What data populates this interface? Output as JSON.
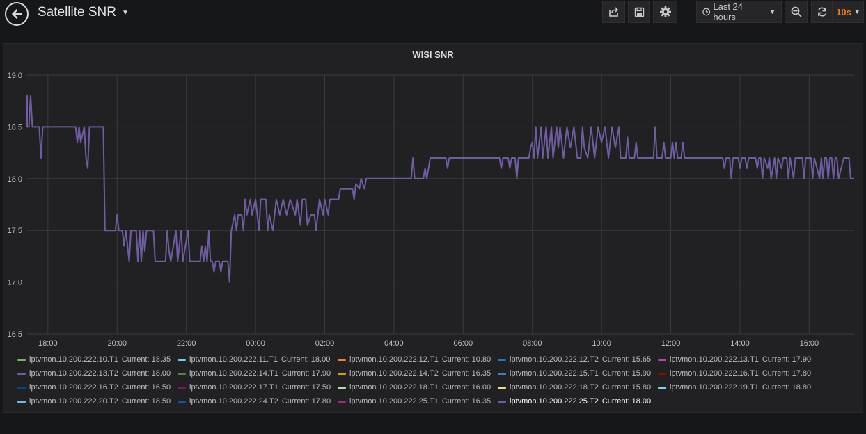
{
  "header": {
    "title": "Satellite SNR",
    "time_range": "Last 24 hours",
    "refresh_interval": "10s"
  },
  "panel": {
    "title": "WISI SNR"
  },
  "legend": [
    {
      "name": "iptvmon.10.200.222.10.T1",
      "current": "Current: 18.35",
      "color": "#7eb26d"
    },
    {
      "name": "iptvmon.10.200.222.11.T1",
      "current": "Current: 18.00",
      "color": "#6ed0e0"
    },
    {
      "name": "iptvmon.10.200.222.12.T1",
      "current": "Current: 10.80",
      "color": "#ef843c"
    },
    {
      "name": "iptvmon.10.200.222.12.T2",
      "current": "Current: 15.65",
      "color": "#1f78c1"
    },
    {
      "name": "iptvmon.10.200.222.13.T1",
      "current": "Current: 17.90",
      "color": "#ba43a9"
    },
    {
      "name": "iptvmon.10.200.222.13.T2",
      "current": "Current: 18.00",
      "color": "#705da0"
    },
    {
      "name": "iptvmon.10.200.222.14.T1",
      "current": "Current: 17.90",
      "color": "#508642"
    },
    {
      "name": "iptvmon.10.200.222.14.T2",
      "current": "Current: 16.35",
      "color": "#cca300"
    },
    {
      "name": "iptvmon.10.200.222.15.T1",
      "current": "Current: 15.90",
      "color": "#447ebc"
    },
    {
      "name": "iptvmon.10.200.222.16.T1",
      "current": "Current: 17.80",
      "color": "#890f02"
    },
    {
      "name": "iptvmon.10.200.222.16.T2",
      "current": "Current: 16.50",
      "color": "#0a437c"
    },
    {
      "name": "iptvmon.10.200.222.17.T1",
      "current": "Current: 17.50",
      "color": "#6d1f62"
    },
    {
      "name": "iptvmon.10.200.222.18.T1",
      "current": "Current: 16.00",
      "color": "#b7dbab"
    },
    {
      "name": "iptvmon.10.200.222.18.T2",
      "current": "Current: 15.80",
      "color": "#f4d598"
    },
    {
      "name": "iptvmon.10.200.222.19.T1",
      "current": "Current: 18.80",
      "color": "#70dbed"
    },
    {
      "name": "iptvmon.10.200.222.20.T2",
      "current": "Current: 18.50",
      "color": "#82b5d8"
    },
    {
      "name": "iptvmon.10.200.222.24.T2",
      "current": "Current: 17.80",
      "color": "#1f4e9b"
    },
    {
      "name": "iptvmon.10.200.222.25.T1",
      "current": "Current: 16.35",
      "color": "#9e2a7a"
    },
    {
      "name": "iptvmon.10.200.222.25.T2",
      "current": "Current: 18.00",
      "color": "#705da0",
      "active": true
    }
  ],
  "chart_data": {
    "type": "line",
    "title": "WISI SNR",
    "ylim": [
      16.5,
      19.0
    ],
    "yticks": [
      "16.5",
      "17.0",
      "17.5",
      "18.0",
      "18.5",
      "19.0"
    ],
    "xlim": [
      -6.6,
      17.3
    ],
    "xticks": [
      {
        "label": "18:00",
        "value": -6
      },
      {
        "label": "20:00",
        "value": -4
      },
      {
        "label": "22:00",
        "value": -2
      },
      {
        "label": "00:00",
        "value": 0
      },
      {
        "label": "02:00",
        "value": 2
      },
      {
        "label": "04:00",
        "value": 4
      },
      {
        "label": "06:00",
        "value": 6
      },
      {
        "label": "08:00",
        "value": 8
      },
      {
        "label": "10:00",
        "value": 10
      },
      {
        "label": "12:00",
        "value": 12
      },
      {
        "label": "14:00",
        "value": 14
      },
      {
        "label": "16:00",
        "value": 16
      }
    ],
    "grid": true,
    "series": [
      {
        "color": "#705da0",
        "points": [
          [
            -7.3,
            18.8
          ],
          [
            -7.0,
            18.8
          ],
          [
            -6.95,
            18.65
          ],
          [
            -6.88,
            18.8
          ],
          [
            -6.82,
            18.65
          ],
          [
            -6.78,
            18.8
          ],
          [
            -6.7,
            18.8
          ],
          [
            -6.65,
            18.5
          ],
          [
            -6.55,
            18.5
          ],
          [
            -6.5,
            18.8
          ],
          [
            -6.45,
            18.5
          ],
          [
            -6.25,
            18.5
          ],
          [
            -6.2,
            18.2
          ],
          [
            -6.15,
            18.5
          ],
          [
            -5.2,
            18.5
          ],
          [
            -5.15,
            18.35
          ],
          [
            -5.1,
            18.5
          ],
          [
            -5.05,
            18.35
          ],
          [
            -4.95,
            18.5
          ],
          [
            -4.9,
            18.2
          ],
          [
            -4.85,
            18.1
          ],
          [
            -4.8,
            18.5
          ],
          [
            -4.4,
            18.5
          ],
          [
            -4.35,
            17.5
          ],
          [
            -4.05,
            17.5
          ],
          [
            -4.0,
            17.65
          ],
          [
            -3.95,
            17.5
          ],
          [
            -3.85,
            17.5
          ],
          [
            -3.8,
            17.35
          ],
          [
            -3.75,
            17.5
          ],
          [
            -3.65,
            17.2
          ],
          [
            -3.6,
            17.5
          ],
          [
            -3.45,
            17.5
          ],
          [
            -3.4,
            17.2
          ],
          [
            -3.35,
            17.5
          ],
          [
            -3.3,
            17.2
          ],
          [
            -3.25,
            17.5
          ],
          [
            -3.2,
            17.3
          ],
          [
            -3.15,
            17.5
          ],
          [
            -2.95,
            17.5
          ],
          [
            -2.9,
            17.2
          ],
          [
            -2.6,
            17.2
          ],
          [
            -2.55,
            17.5
          ],
          [
            -2.5,
            17.3
          ],
          [
            -2.45,
            17.2
          ],
          [
            -2.3,
            17.5
          ],
          [
            -2.25,
            17.2
          ],
          [
            -2.15,
            17.5
          ],
          [
            -2.1,
            17.2
          ],
          [
            -1.95,
            17.5
          ],
          [
            -1.9,
            17.2
          ],
          [
            -1.6,
            17.2
          ],
          [
            -1.55,
            17.35
          ],
          [
            -1.5,
            17.2
          ],
          [
            -1.45,
            17.35
          ],
          [
            -1.4,
            17.2
          ],
          [
            -1.35,
            17.5
          ],
          [
            -1.3,
            17.2
          ],
          [
            -1.25,
            17.2
          ],
          [
            -1.2,
            17.1
          ],
          [
            -1.15,
            17.2
          ],
          [
            -1.05,
            17.2
          ],
          [
            -1.0,
            17.1
          ],
          [
            -0.95,
            17.2
          ],
          [
            -0.8,
            17.2
          ],
          [
            -0.75,
            17.0
          ],
          [
            -0.7,
            17.5
          ],
          [
            -0.6,
            17.65
          ],
          [
            -0.55,
            17.5
          ],
          [
            -0.5,
            17.65
          ],
          [
            -0.4,
            17.65
          ],
          [
            -0.35,
            17.5
          ],
          [
            -0.3,
            17.8
          ],
          [
            -0.25,
            17.65
          ],
          [
            -0.15,
            17.8
          ],
          [
            -0.1,
            17.65
          ],
          [
            0.0,
            17.8
          ],
          [
            0.1,
            17.5
          ],
          [
            0.15,
            17.8
          ],
          [
            0.3,
            17.8
          ],
          [
            0.35,
            17.5
          ],
          [
            0.4,
            17.65
          ],
          [
            0.5,
            17.5
          ],
          [
            0.6,
            17.8
          ],
          [
            0.7,
            17.65
          ],
          [
            0.8,
            17.8
          ],
          [
            0.9,
            17.65
          ],
          [
            1.0,
            17.8
          ],
          [
            1.15,
            17.65
          ],
          [
            1.2,
            17.8
          ],
          [
            1.3,
            17.55
          ],
          [
            1.35,
            17.8
          ],
          [
            1.45,
            17.8
          ],
          [
            1.5,
            17.55
          ],
          [
            1.6,
            17.65
          ],
          [
            1.7,
            17.65
          ],
          [
            1.75,
            17.5
          ],
          [
            1.85,
            17.8
          ],
          [
            1.95,
            17.65
          ],
          [
            2.0,
            17.8
          ],
          [
            2.1,
            17.65
          ],
          [
            2.15,
            17.8
          ],
          [
            2.2,
            17.8
          ],
          [
            2.4,
            17.8
          ],
          [
            2.45,
            17.9
          ],
          [
            2.8,
            17.9
          ],
          [
            2.85,
            17.8
          ],
          [
            2.9,
            17.95
          ],
          [
            3.0,
            17.9
          ],
          [
            3.05,
            18.0
          ],
          [
            3.15,
            17.9
          ],
          [
            3.2,
            18.0
          ],
          [
            4.5,
            18.0
          ],
          [
            4.55,
            18.2
          ],
          [
            4.6,
            18.0
          ],
          [
            4.85,
            18.0
          ],
          [
            4.9,
            18.1
          ],
          [
            4.95,
            18.0
          ],
          [
            5.05,
            18.2
          ],
          [
            5.5,
            18.2
          ],
          [
            5.55,
            18.1
          ],
          [
            5.6,
            18.2
          ],
          [
            7.05,
            18.2
          ],
          [
            7.1,
            18.1
          ],
          [
            7.15,
            18.2
          ],
          [
            7.3,
            18.2
          ],
          [
            7.35,
            18.1
          ],
          [
            7.4,
            18.2
          ],
          [
            7.5,
            18.2
          ],
          [
            7.55,
            18.0
          ],
          [
            7.6,
            18.2
          ],
          [
            7.9,
            18.2
          ],
          [
            7.95,
            18.3
          ],
          [
            8.0,
            18.35
          ],
          [
            8.05,
            18.2
          ],
          [
            8.1,
            18.5
          ],
          [
            8.15,
            18.2
          ],
          [
            8.25,
            18.5
          ],
          [
            8.3,
            18.2
          ],
          [
            8.4,
            18.5
          ],
          [
            8.45,
            18.2
          ],
          [
            8.55,
            18.5
          ],
          [
            8.6,
            18.2
          ],
          [
            8.7,
            18.5
          ],
          [
            8.75,
            18.3
          ],
          [
            8.8,
            18.5
          ],
          [
            8.9,
            18.2
          ],
          [
            9.0,
            18.5
          ],
          [
            9.1,
            18.3
          ],
          [
            9.2,
            18.5
          ],
          [
            9.3,
            18.2
          ],
          [
            9.4,
            18.2
          ],
          [
            9.45,
            18.5
          ],
          [
            9.5,
            18.3
          ],
          [
            9.6,
            18.2
          ],
          [
            9.7,
            18.5
          ],
          [
            9.8,
            18.2
          ],
          [
            9.9,
            18.5
          ],
          [
            10.0,
            18.35
          ],
          [
            10.1,
            18.5
          ],
          [
            10.2,
            18.2
          ],
          [
            10.3,
            18.5
          ],
          [
            10.4,
            18.3
          ],
          [
            10.5,
            18.5
          ],
          [
            10.55,
            18.2
          ],
          [
            10.7,
            18.2
          ],
          [
            10.75,
            18.4
          ],
          [
            10.8,
            18.2
          ],
          [
            10.95,
            18.2
          ],
          [
            11.0,
            18.35
          ],
          [
            11.05,
            18.2
          ],
          [
            11.5,
            18.2
          ],
          [
            11.55,
            18.5
          ],
          [
            11.6,
            18.2
          ],
          [
            11.75,
            18.2
          ],
          [
            11.8,
            18.35
          ],
          [
            11.85,
            18.2
          ],
          [
            12.0,
            18.2
          ],
          [
            12.05,
            18.35
          ],
          [
            12.1,
            18.2
          ],
          [
            12.15,
            18.35
          ],
          [
            12.2,
            18.2
          ],
          [
            12.3,
            18.2
          ],
          [
            12.35,
            18.35
          ],
          [
            12.4,
            18.2
          ],
          [
            13.5,
            18.2
          ],
          [
            13.55,
            18.1
          ],
          [
            13.6,
            18.2
          ],
          [
            13.7,
            18.2
          ],
          [
            13.75,
            18.0
          ],
          [
            13.8,
            18.2
          ],
          [
            13.95,
            18.2
          ],
          [
            14.0,
            18.1
          ],
          [
            14.05,
            18.2
          ],
          [
            14.15,
            18.2
          ],
          [
            14.2,
            18.1
          ],
          [
            14.25,
            18.2
          ],
          [
            14.45,
            18.2
          ],
          [
            14.5,
            18.1
          ],
          [
            14.55,
            18.2
          ],
          [
            14.6,
            18.2
          ],
          [
            14.65,
            18.0
          ],
          [
            14.7,
            18.2
          ],
          [
            14.8,
            18.1
          ],
          [
            14.85,
            18.2
          ],
          [
            14.9,
            18.0
          ],
          [
            15.0,
            18.2
          ],
          [
            15.05,
            18.0
          ],
          [
            15.1,
            18.2
          ],
          [
            15.2,
            18.1
          ],
          [
            15.25,
            18.2
          ],
          [
            15.35,
            18.2
          ],
          [
            15.4,
            18.0
          ],
          [
            15.45,
            18.2
          ],
          [
            15.55,
            18.0
          ],
          [
            15.6,
            18.2
          ],
          [
            15.8,
            18.2
          ],
          [
            15.85,
            18.0
          ],
          [
            15.9,
            18.2
          ],
          [
            16.05,
            18.2
          ],
          [
            16.1,
            18.0
          ],
          [
            16.15,
            18.2
          ],
          [
            16.3,
            18.0
          ],
          [
            16.35,
            18.2
          ],
          [
            16.4,
            18.0
          ],
          [
            16.45,
            18.2
          ],
          [
            16.5,
            18.2
          ],
          [
            16.55,
            18.0
          ],
          [
            16.6,
            18.2
          ],
          [
            16.65,
            18.2
          ],
          [
            16.7,
            18.0
          ],
          [
            16.75,
            18.2
          ],
          [
            16.8,
            18.2
          ],
          [
            16.85,
            18.0
          ],
          [
            17.0,
            18.2
          ],
          [
            17.15,
            18.2
          ],
          [
            17.2,
            18.0
          ],
          [
            17.3,
            18.0
          ]
        ]
      }
    ]
  }
}
